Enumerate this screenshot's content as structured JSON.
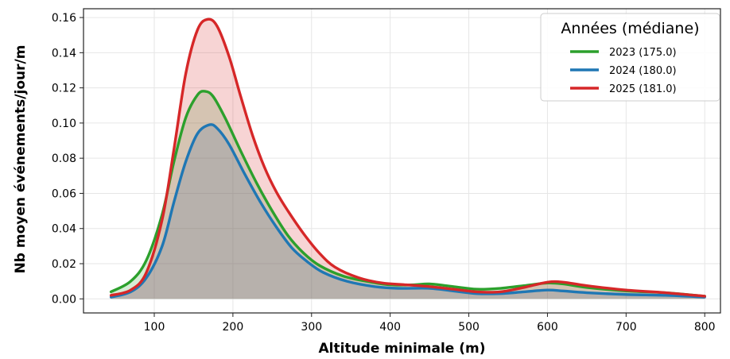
{
  "chart_data": {
    "type": "area",
    "title": "",
    "xlabel": "Altitude minimale (m)",
    "ylabel": "Nb moyen événements/jour/m",
    "xlim": [
      10,
      820
    ],
    "ylim": [
      -0.008,
      0.165
    ],
    "xticks": [
      100,
      200,
      300,
      400,
      500,
      600,
      700,
      800
    ],
    "yticks": [
      0.0,
      0.02,
      0.04,
      0.06,
      0.08,
      0.1,
      0.12,
      0.14,
      0.16
    ],
    "grid": true,
    "legend": {
      "title": "Années (médiane)",
      "placement": "top-right"
    },
    "series": [
      {
        "name": "2023 (175.0)",
        "color": "#2ca02c",
        "points": [
          [
            45,
            0.004
          ],
          [
            70,
            0.01
          ],
          [
            90,
            0.022
          ],
          [
            110,
            0.048
          ],
          [
            125,
            0.078
          ],
          [
            140,
            0.103
          ],
          [
            155,
            0.116
          ],
          [
            165,
            0.118
          ],
          [
            175,
            0.115
          ],
          [
            190,
            0.103
          ],
          [
            210,
            0.084
          ],
          [
            230,
            0.066
          ],
          [
            250,
            0.05
          ],
          [
            270,
            0.036
          ],
          [
            290,
            0.026
          ],
          [
            310,
            0.019
          ],
          [
            340,
            0.013
          ],
          [
            370,
            0.01
          ],
          [
            400,
            0.008
          ],
          [
            430,
            0.008
          ],
          [
            450,
            0.0085
          ],
          [
            480,
            0.007
          ],
          [
            510,
            0.0055
          ],
          [
            540,
            0.006
          ],
          [
            570,
            0.0075
          ],
          [
            600,
            0.009
          ],
          [
            620,
            0.0085
          ],
          [
            650,
            0.0065
          ],
          [
            700,
            0.0045
          ],
          [
            750,
            0.0035
          ],
          [
            800,
            0.0015
          ]
        ]
      },
      {
        "name": "2024 (180.0)",
        "color": "#1f77b4",
        "points": [
          [
            45,
            0.001
          ],
          [
            70,
            0.004
          ],
          [
            90,
            0.012
          ],
          [
            110,
            0.03
          ],
          [
            125,
            0.055
          ],
          [
            140,
            0.078
          ],
          [
            155,
            0.094
          ],
          [
            170,
            0.099
          ],
          [
            180,
            0.097
          ],
          [
            195,
            0.088
          ],
          [
            215,
            0.071
          ],
          [
            235,
            0.055
          ],
          [
            255,
            0.041
          ],
          [
            275,
            0.029
          ],
          [
            295,
            0.021
          ],
          [
            315,
            0.015
          ],
          [
            345,
            0.01
          ],
          [
            380,
            0.007
          ],
          [
            410,
            0.006
          ],
          [
            450,
            0.006
          ],
          [
            480,
            0.0045
          ],
          [
            510,
            0.003
          ],
          [
            540,
            0.003
          ],
          [
            570,
            0.004
          ],
          [
            600,
            0.005
          ],
          [
            620,
            0.0045
          ],
          [
            650,
            0.0035
          ],
          [
            700,
            0.0025
          ],
          [
            750,
            0.002
          ],
          [
            800,
            0.001
          ]
        ]
      },
      {
        "name": "2025 (181.0)",
        "color": "#d62728",
        "points": [
          [
            45,
            0.002
          ],
          [
            70,
            0.005
          ],
          [
            90,
            0.015
          ],
          [
            110,
            0.045
          ],
          [
            125,
            0.085
          ],
          [
            140,
            0.128
          ],
          [
            155,
            0.153
          ],
          [
            168,
            0.159
          ],
          [
            180,
            0.155
          ],
          [
            195,
            0.138
          ],
          [
            210,
            0.115
          ],
          [
            225,
            0.093
          ],
          [
            240,
            0.075
          ],
          [
            255,
            0.061
          ],
          [
            270,
            0.05
          ],
          [
            290,
            0.037
          ],
          [
            310,
            0.026
          ],
          [
            330,
            0.018
          ],
          [
            360,
            0.012
          ],
          [
            390,
            0.009
          ],
          [
            420,
            0.008
          ],
          [
            450,
            0.007
          ],
          [
            480,
            0.0055
          ],
          [
            510,
            0.004
          ],
          [
            540,
            0.004
          ],
          [
            570,
            0.0065
          ],
          [
            600,
            0.0095
          ],
          [
            620,
            0.0095
          ],
          [
            650,
            0.0075
          ],
          [
            700,
            0.005
          ],
          [
            750,
            0.0035
          ],
          [
            800,
            0.0015
          ]
        ]
      }
    ]
  }
}
